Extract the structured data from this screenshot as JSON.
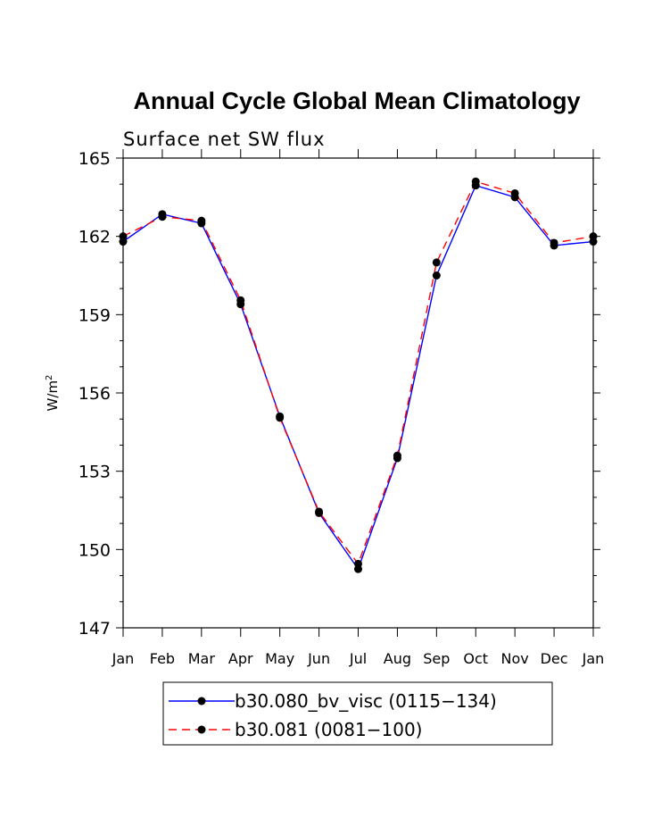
{
  "chart_data": {
    "type": "line",
    "title": "Annual Cycle Global Mean Climatology",
    "subtitle": "Surface net SW flux",
    "ylabel_base": "W/m",
    "ylabel_sup": "2",
    "xlabel": "",
    "categories": [
      "Jan",
      "Feb",
      "Mar",
      "Apr",
      "May",
      "Jun",
      "Jul",
      "Aug",
      "Sep",
      "Oct",
      "Nov",
      "Dec",
      "Jan"
    ],
    "ylim": [
      147,
      165
    ],
    "yticks": [
      "147",
      "150",
      "153",
      "156",
      "159",
      "162",
      "165"
    ],
    "series": [
      {
        "name": "b30.080_bv_visc (0115−134)",
        "color": "#0000ff",
        "style": "solid",
        "values": [
          161.8,
          162.85,
          162.5,
          159.4,
          155.1,
          151.4,
          149.25,
          153.5,
          160.5,
          163.95,
          163.5,
          161.65,
          161.8
        ]
      },
      {
        "name": "b30.081 (0081−100)",
        "color": "#ff0000",
        "style": "dashed",
        "values": [
          162.0,
          162.75,
          162.6,
          159.55,
          155.05,
          151.45,
          149.45,
          153.6,
          161.0,
          164.1,
          163.65,
          161.75,
          162.0
        ]
      }
    ],
    "grid": false,
    "legend_position": "bottom"
  }
}
